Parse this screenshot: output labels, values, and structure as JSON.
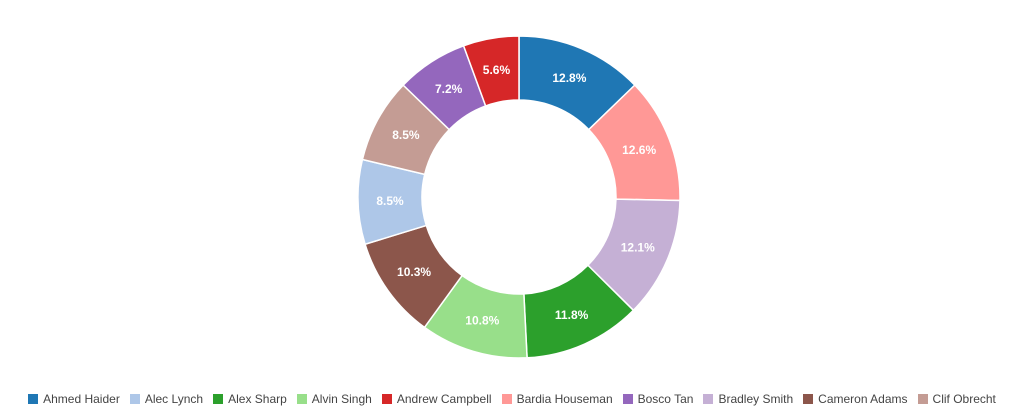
{
  "chart_data": {
    "type": "pie",
    "donut": true,
    "legend_position": "bottom",
    "series": [
      {
        "name": "Ahmed Haider",
        "value": 12.8,
        "label": "12.8%",
        "color": "#1f77b4"
      },
      {
        "name": "Bardia Houseman",
        "value": 12.6,
        "label": "12.6%",
        "color": "#ff9896"
      },
      {
        "name": "Bradley Smith",
        "value": 12.1,
        "label": "12.1%",
        "color": "#c5b0d5"
      },
      {
        "name": "Alex Sharp",
        "value": 11.8,
        "label": "11.8%",
        "color": "#2ca02c"
      },
      {
        "name": "Alvin Singh",
        "value": 10.8,
        "label": "10.8%",
        "color": "#98df8a"
      },
      {
        "name": "Cameron Adams",
        "value": 10.3,
        "label": "10.3%",
        "color": "#8c564b"
      },
      {
        "name": "Alec Lynch",
        "value": 8.5,
        "label": "8.5%",
        "color": "#aec7e8"
      },
      {
        "name": "Clif Obrecht",
        "value": 8.5,
        "label": "8.5%",
        "color": "#c49c94"
      },
      {
        "name": "Bosco Tan",
        "value": 7.2,
        "label": "7.2%",
        "color": "#9467bd"
      },
      {
        "name": "Andrew Campbell",
        "value": 5.6,
        "label": "5.6%",
        "color": "#d62728"
      }
    ],
    "legend_order": [
      "Ahmed Haider",
      "Alec Lynch",
      "Alex Sharp",
      "Alvin Singh",
      "Andrew Campbell",
      "Bardia Houseman",
      "Bosco Tan",
      "Bradley Smith",
      "Cameron Adams",
      "Clif Obrecht"
    ]
  }
}
